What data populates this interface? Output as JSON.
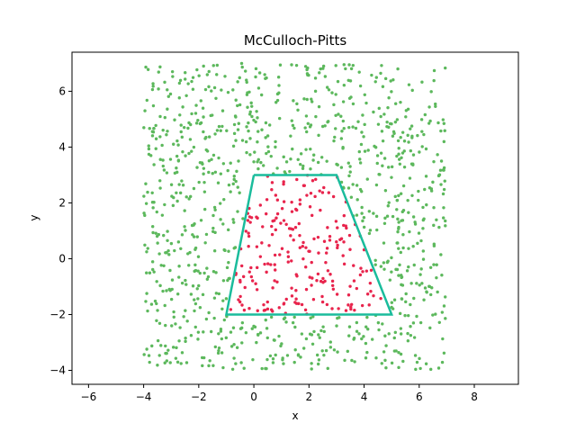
{
  "chart_data": {
    "type": "scatter",
    "title": "McCulloch-Pitts",
    "xlabel": "x",
    "ylabel": "y",
    "xlim": [
      -6.6,
      9.6
    ],
    "ylim": [
      -4.5,
      7.4
    ],
    "xticks": [
      -6,
      -4,
      -2,
      0,
      2,
      4,
      6,
      8
    ],
    "yticks": [
      -4,
      -2,
      0,
      2,
      4,
      6
    ],
    "xtick_labels": [
      "−6",
      "−4",
      "−2",
      "0",
      "2",
      "4",
      "6",
      "8"
    ],
    "ytick_labels": [
      "−4",
      "−2",
      "0",
      "2",
      "4",
      "6"
    ],
    "grid": false,
    "sampling_region": {
      "x": [
        -4,
        7
      ],
      "y": [
        -4,
        7
      ]
    },
    "series": [
      {
        "name": "outside",
        "color": "#5cb85c",
        "description": "Uniform random points outside the trapezoid (approx. 900 points)"
      },
      {
        "name": "inside",
        "color": "#e8244c",
        "description": "Uniform random points inside the trapezoid (approx. 330 points)"
      }
    ],
    "boundary": {
      "name": "trapezoid",
      "color": "#1abc9c",
      "vertices": [
        [
          0,
          3
        ],
        [
          3,
          3
        ],
        [
          5,
          -2
        ],
        [
          -1,
          -2
        ],
        [
          0,
          3
        ]
      ]
    },
    "point_count_estimate": 1200
  }
}
